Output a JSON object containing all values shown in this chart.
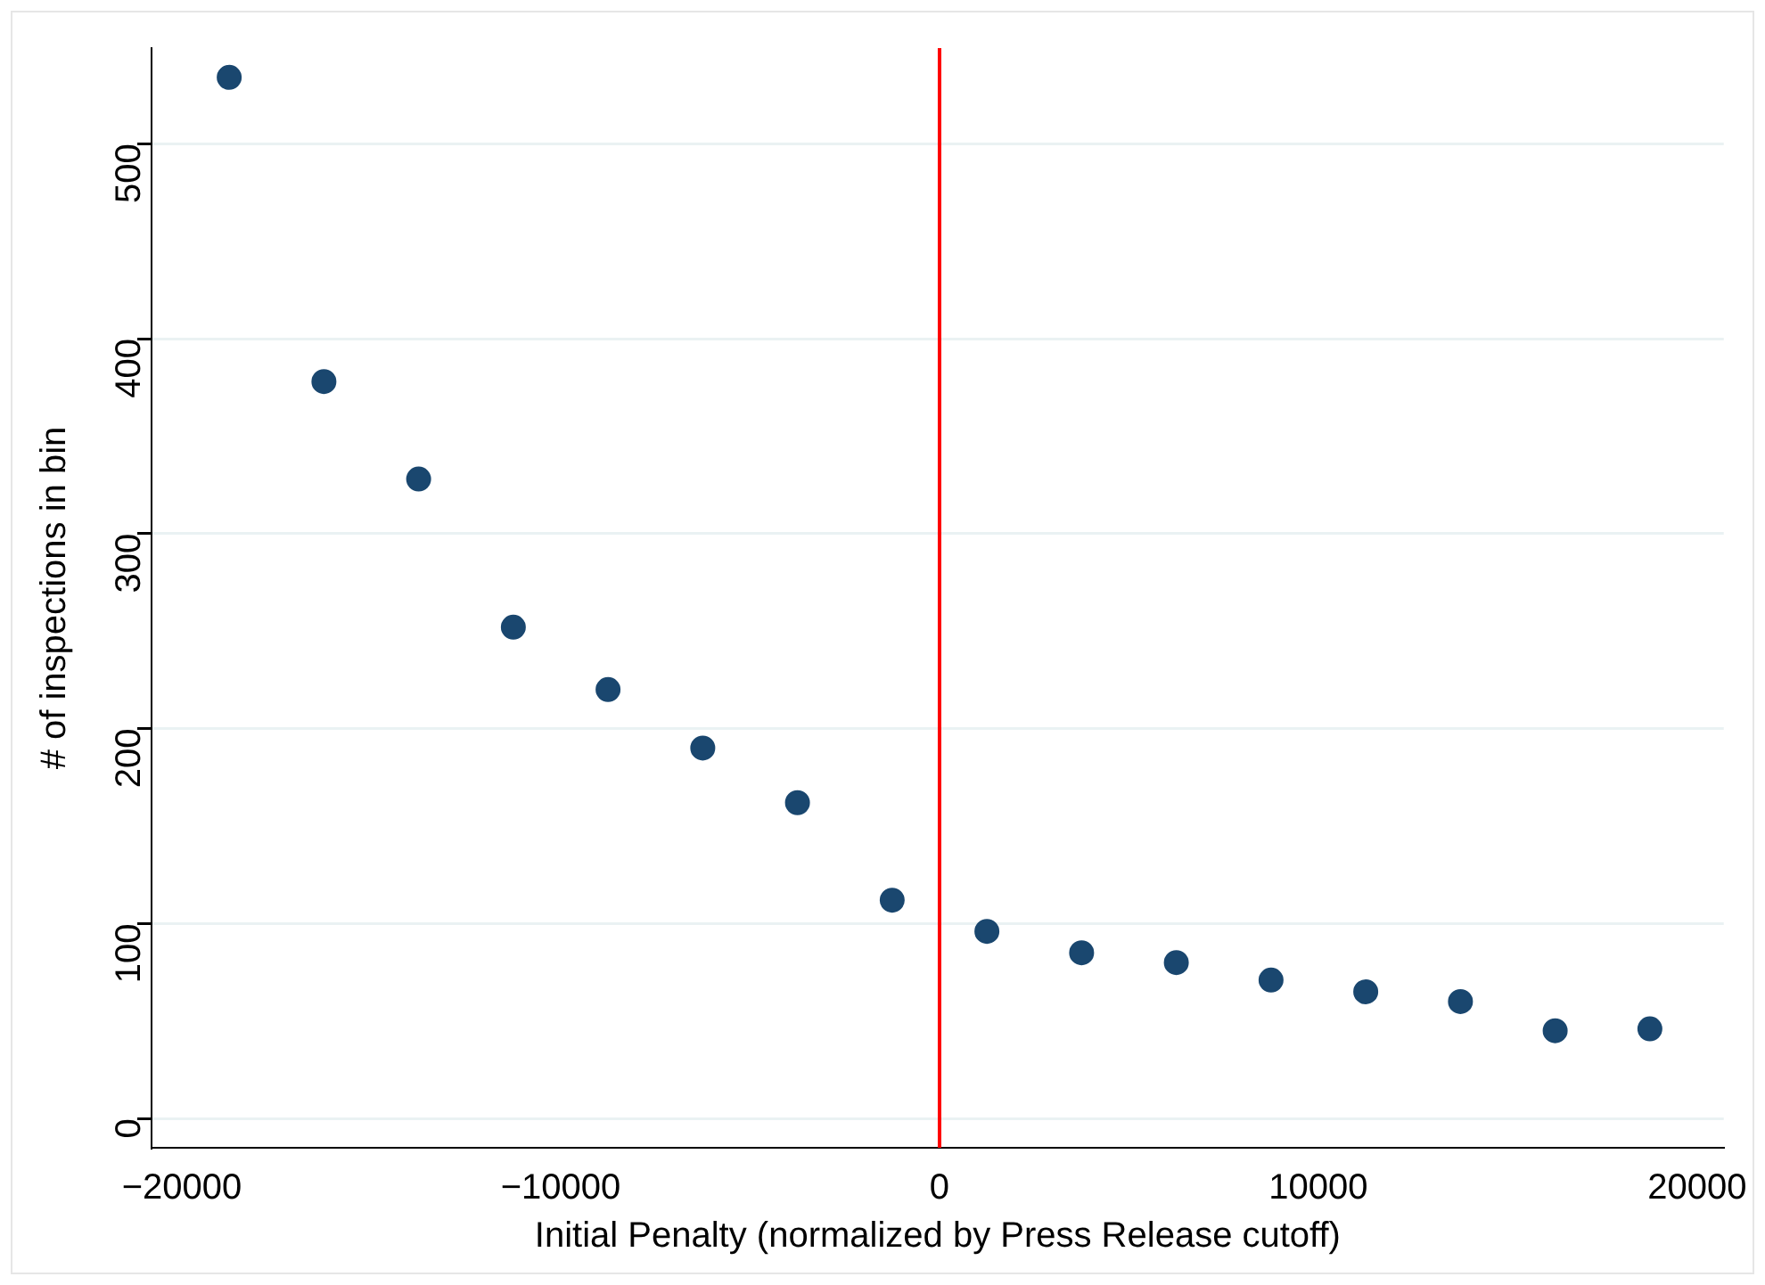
{
  "chart_data": {
    "type": "scatter",
    "xlabel": "Initial Penalty (normalized by Press Release cutoff)",
    "ylabel": "# of inspections in bin",
    "x": [
      -18750,
      -16250,
      -13750,
      -11250,
      -8750,
      -6250,
      -3750,
      -1250,
      1250,
      3750,
      6250,
      8750,
      11250,
      13750,
      16250,
      18750
    ],
    "series": [
      {
        "color": "#1a476f",
        "values": [
          534,
          378,
          328,
          252,
          220,
          190,
          162,
          112,
          96,
          85,
          80,
          71,
          65,
          60,
          45,
          46
        ]
      }
    ],
    "xlim": [
      -20800,
      20700
    ],
    "xticks": [
      -20000,
      -10000,
      0,
      10000,
      20000
    ],
    "ylim": [
      -15,
      549
    ],
    "yticks": [
      0,
      100,
      200,
      300,
      400,
      500
    ],
    "ref_lines": [
      {
        "axis": "x",
        "value": 0,
        "color": "#ff0000"
      }
    ],
    "grid": "y",
    "legend": false,
    "marker": "circle"
  }
}
